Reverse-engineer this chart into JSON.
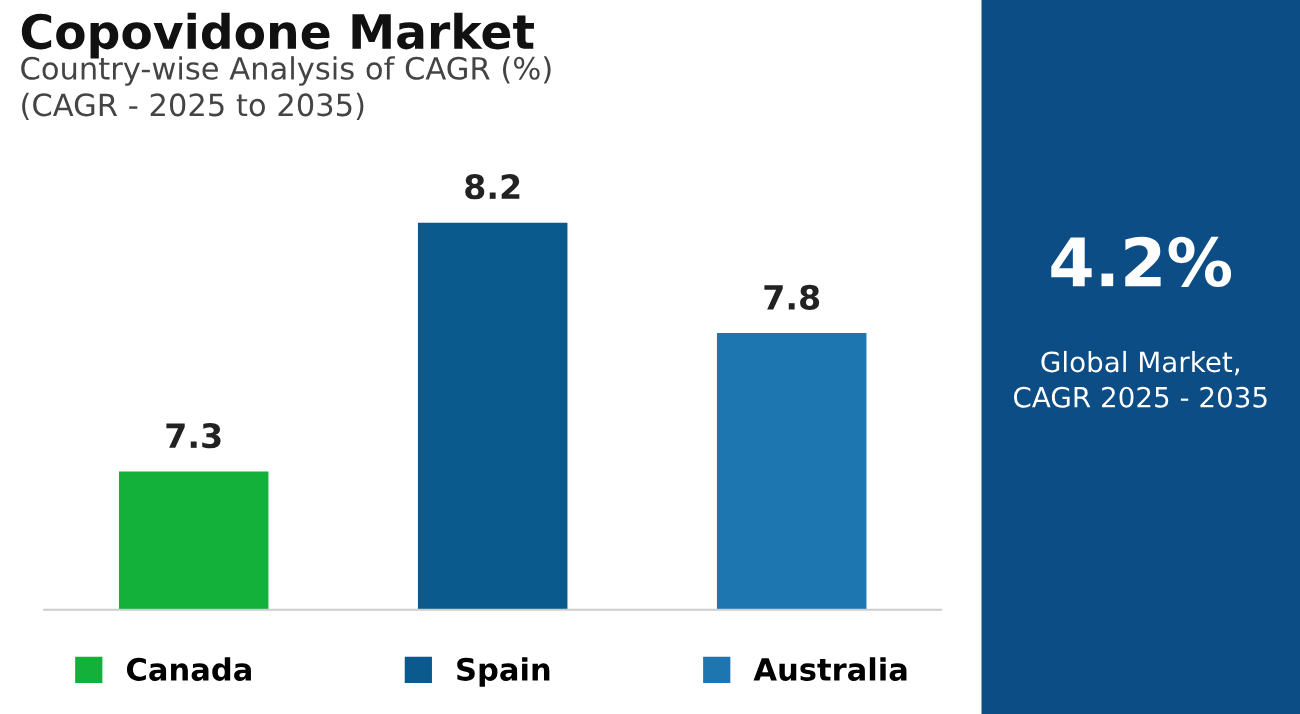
{
  "chart_data": [
    {
      "type": "bar",
      "title": "Copovidone Market",
      "subtitle": "Country-wise Analysis of CAGR (%)\n(CAGR - 2025 to 2035)",
      "categories": [
        null,
        null,
        null
      ],
      "series": [
        {
          "name": "Canada",
          "color": "#13b03a",
          "values": [
            7.3,
            null,
            null
          ]
        },
        {
          "name": "Spain",
          "color": "#0b5a8e",
          "values": [
            null,
            8.2,
            null
          ]
        },
        {
          "name": "Australia",
          "color": "#1d76b0",
          "values": [
            null,
            null,
            7.8
          ]
        }
      ],
      "stacked": true,
      "ylim": [
        6.8,
        8.2
      ],
      "data_labels": true,
      "legend": "bottom",
      "grid": false,
      "tick_labels": false
    },
    {
      "type": "other",
      "title": "4.2%",
      "subtitle": "Global Market,\nCAGR 2025 - 2035"
    }
  ]
}
